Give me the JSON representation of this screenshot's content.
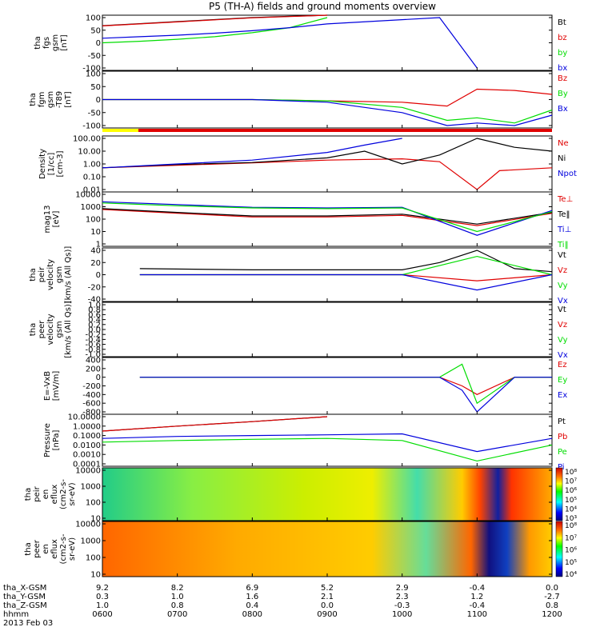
{
  "title": "P5 (TH-A) fields and ground moments overview",
  "date": "2013 Feb 03",
  "colors": {
    "black": "#000000",
    "red": "#e00000",
    "green": "#00dd00",
    "blue": "#0000dd",
    "yellow": "#ffff00",
    "orange": "#ff6600"
  },
  "x_ticks": [
    "0600",
    "0700",
    "0800",
    "0900",
    "1000",
    "1100",
    "1200"
  ],
  "ephemeris": [
    {
      "label": "tha_X-GSM",
      "values": [
        "9.2",
        "8.2",
        "6.9",
        "5.2",
        "2.9",
        "-0.4",
        "0.0"
      ]
    },
    {
      "label": "tha_Y-GSM",
      "values": [
        "0.3",
        "1.0",
        "1.6",
        "2.1",
        "2.3",
        "1.2",
        "-2.7"
      ]
    },
    {
      "label": "tha_Z-GSM",
      "values": [
        "1.0",
        "0.8",
        "0.4",
        "0.0",
        "-0.3",
        "-0.4",
        "0.8"
      ]
    },
    {
      "label": "hhmm",
      "values": [
        "",
        "",
        "",
        "",
        "",
        "",
        ""
      ]
    }
  ],
  "panels": [
    {
      "ylabel": [
        "tha",
        "fgs",
        "gsm",
        "[nT]"
      ],
      "ticks": [
        "100",
        "50",
        "0",
        "-50",
        "-100"
      ],
      "legend": [
        "Bt",
        "bz",
        "by",
        "bx"
      ],
      "legend_colors": [
        "black",
        "red",
        "green",
        "blue"
      ]
    },
    {
      "ylabel": [
        "tha",
        "fgm",
        "gsm",
        "-T89",
        "[nT]"
      ],
      "ticks": [
        "100",
        "50",
        "0",
        "-50",
        "-100"
      ],
      "legend": [
        "Bz",
        "By",
        "Bx"
      ],
      "legend_colors": [
        "red",
        "green",
        "blue"
      ]
    },
    {
      "ylabel": [
        "Density",
        "[1/cc]",
        "[cm-3]"
      ],
      "ticks": [
        "100.00",
        "10.00",
        "1.00",
        "0.10",
        "0.01"
      ],
      "legend": [
        "Ne",
        "Ni",
        "Npot"
      ],
      "legend_colors": [
        "red",
        "black",
        "blue"
      ]
    },
    {
      "ylabel": [
        "mag13",
        "[eV]"
      ],
      "ticks": [
        "10000",
        "1000",
        "100",
        "10",
        "1"
      ],
      "legend": [
        "Te⊥",
        "Te‖",
        "Ti⊥",
        "Ti‖"
      ],
      "legend_colors": [
        "red",
        "black",
        "blue",
        "green"
      ]
    },
    {
      "ylabel": [
        "tha",
        "peir",
        "velocity",
        "gsm",
        "[km/s (All Qs)]"
      ],
      "ticks": [
        "40",
        "20",
        "0",
        "-20",
        "-40"
      ],
      "legend": [
        "Vt",
        "Vz",
        "Vy",
        "Vx"
      ],
      "legend_colors": [
        "black",
        "red",
        "green",
        "blue"
      ]
    },
    {
      "ylabel": [
        "tha",
        "peer",
        "velocity",
        "gsm",
        "[km/s (All Qs)]"
      ],
      "ticks": [
        "1.0",
        "0.8",
        "0.6",
        "0.4",
        "0.2",
        "0.0",
        "-0.2",
        "-0.4",
        "-0.6",
        "-0.8",
        "-1.0"
      ],
      "legend": [
        "Vt",
        "Vz",
        "Vy",
        "Vx"
      ],
      "legend_colors": [
        "black",
        "red",
        "green",
        "blue"
      ]
    },
    {
      "ylabel": [
        "E=-VxB",
        "[mV/m]"
      ],
      "ticks": [
        "400",
        "200",
        "0",
        "-200",
        "-400",
        "-600",
        "-800"
      ],
      "legend": [
        "Ez",
        "Ey",
        "Ex"
      ],
      "legend_colors": [
        "red",
        "green",
        "blue"
      ]
    },
    {
      "ylabel": [
        "Pressure",
        "[nPa]"
      ],
      "ticks": [
        "10.0000",
        "1.0000",
        "0.1000",
        "0.0100",
        "0.0010",
        "0.0001"
      ],
      "legend": [
        "Pt",
        "Pb",
        "Pe",
        "Pi"
      ],
      "legend_colors": [
        "black",
        "red",
        "green",
        "blue"
      ]
    },
    {
      "ylabel": [
        "tha",
        "peir",
        "en",
        "eflux",
        "(cm2-s-",
        "sr-eV)"
      ],
      "ticks": [
        "10000",
        "1000",
        "100",
        "10"
      ],
      "colorbar": [
        "10⁸",
        "10⁷",
        "10⁶",
        "10⁵",
        "10⁴",
        "10³"
      ]
    },
    {
      "ylabel": [
        "tha",
        "peer",
        "en",
        "eflux",
        "(cm2-s-",
        "sr-eV)"
      ],
      "ticks": [
        "10000",
        "1000",
        "100",
        "10"
      ],
      "colorbar": [
        "10⁸",
        "10⁷",
        "10⁶",
        "10⁵",
        "10⁴"
      ]
    }
  ],
  "chart_data": {
    "type": "line",
    "title": "P5 (TH-A) fields and ground moments overview",
    "x_unit": "UT hhmm",
    "x_range": [
      "0600",
      "1200"
    ],
    "x_ticks": [
      "0600",
      "0700",
      "0800",
      "0900",
      "1000",
      "1100",
      "1200"
    ],
    "panels": [
      {
        "name": "fgs",
        "ylim": [
          -100,
          100
        ],
        "series": [
          {
            "name": "Bt",
            "color": "black",
            "x": [
              6.0,
              6.5,
              7.0,
              7.5,
              8.0,
              8.5,
              9.0
            ],
            "y": [
              68,
              76,
              84,
              92,
              100,
              105,
              110
            ]
          },
          {
            "name": "bz",
            "color": "red",
            "x": [
              6.0,
              6.5,
              7.0,
              7.5,
              8.0,
              8.5,
              9.0
            ],
            "y": [
              67,
              75,
              83,
              91,
              99,
              104,
              110
            ]
          },
          {
            "name": "by",
            "color": "green",
            "x": [
              6.0,
              6.5,
              7.0,
              7.5,
              8.0,
              8.5,
              9.0
            ],
            "y": [
              0,
              6,
              14,
              24,
              40,
              60,
              100
            ]
          },
          {
            "name": "bx",
            "color": "blue",
            "x": [
              6.0,
              6.5,
              7.0,
              7.5,
              8.0,
              8.5,
              9.0,
              10.5,
              11.0
            ],
            "y": [
              18,
              24,
              30,
              38,
              48,
              60,
              75,
              100,
              -100
            ]
          }
        ]
      },
      {
        "name": "fgm-T89",
        "ylim": [
          -100,
          100
        ],
        "series": [
          {
            "name": "Bz",
            "color": "red",
            "x": [
              6.0,
              7.0,
              8.0,
              9.0,
              10.0,
              10.6,
              11.0,
              11.5,
              12.0
            ],
            "y": [
              0,
              0,
              0,
              -5,
              -10,
              -25,
              40,
              35,
              20
            ]
          },
          {
            "name": "By",
            "color": "green",
            "x": [
              6.0,
              7.0,
              8.0,
              9.0,
              10.0,
              10.6,
              11.0,
              11.5,
              12.0
            ],
            "y": [
              0,
              0,
              0,
              -5,
              -30,
              -80,
              -70,
              -90,
              -40
            ]
          },
          {
            "name": "Bx",
            "color": "blue",
            "x": [
              6.0,
              7.0,
              8.0,
              9.0,
              10.0,
              10.6,
              11.0,
              11.5,
              12.0
            ],
            "y": [
              0,
              0,
              0,
              -10,
              -50,
              -100,
              -90,
              -100,
              -60
            ]
          }
        ]
      },
      {
        "name": "Density",
        "yscale": "log",
        "ylim": [
          0.01,
          100
        ],
        "series": [
          {
            "name": "Ne",
            "color": "red",
            "x": [
              6.0,
              7.0,
              8.0,
              9.0,
              10.0,
              10.5,
              11.0,
              11.3,
              12.0
            ],
            "y": [
              0.5,
              0.8,
              1.2,
              2,
              2.5,
              1.5,
              0.01,
              0.3,
              0.5
            ]
          },
          {
            "name": "Ni",
            "color": "black",
            "x": [
              6.0,
              7.0,
              8.0,
              9.0,
              9.5,
              10.0,
              10.5,
              11.0,
              11.5,
              12.0
            ],
            "y": [
              0.5,
              0.9,
              1.3,
              3,
              10,
              1,
              5,
              100,
              20,
              10
            ]
          },
          {
            "name": "Npot",
            "color": "blue",
            "x": [
              6.0,
              7.0,
              8.0,
              9.0,
              9.5,
              10.0
            ],
            "y": [
              0.5,
              1,
              2,
              8,
              30,
              100
            ]
          }
        ]
      },
      {
        "name": "Temperature",
        "yscale": "log",
        "ylim": [
          1,
          10000
        ],
        "series": [
          {
            "name": "Te⊥",
            "color": "red",
            "x": [
              6.0,
              7.0,
              8.0,
              9.0,
              10.0,
              11.0,
              12.0
            ],
            "y": [
              600,
              300,
              150,
              150,
              200,
              30,
              300
            ]
          },
          {
            "name": "Te‖",
            "color": "black",
            "x": [
              6.0,
              7.0,
              8.0,
              9.0,
              10.0,
              11.0,
              12.0
            ],
            "y": [
              700,
              350,
              180,
              180,
              250,
              40,
              350
            ]
          },
          {
            "name": "Ti⊥",
            "color": "blue",
            "x": [
              6.0,
              7.0,
              8.0,
              9.0,
              10.0,
              11.0,
              12.0
            ],
            "y": [
              2500,
              1500,
              900,
              800,
              900,
              5,
              500
            ]
          },
          {
            "name": "Ti‖",
            "color": "green",
            "x": [
              6.0,
              7.0,
              8.0,
              9.0,
              10.0,
              11.0,
              12.0
            ],
            "y": [
              2000,
              1200,
              800,
              700,
              800,
              10,
              400
            ]
          }
        ]
      },
      {
        "name": "peir velocity",
        "ylim": [
          -40,
          40
        ],
        "series": [
          {
            "name": "Vt",
            "color": "black",
            "x": [
              6.5,
              8.0,
              10.0,
              10.5,
              11.0,
              11.5,
              12.0
            ],
            "y": [
              10,
              8,
              8,
              20,
              40,
              10,
              5
            ]
          },
          {
            "name": "Vz",
            "color": "red",
            "x": [
              6.5,
              8.0,
              10.0,
              11.0,
              12.0
            ],
            "y": [
              0,
              0,
              0,
              -10,
              0
            ]
          },
          {
            "name": "Vy",
            "color": "green",
            "x": [
              6.5,
              8.0,
              10.0,
              11.0,
              12.0
            ],
            "y": [
              0,
              0,
              0,
              30,
              0
            ]
          },
          {
            "name": "Vx",
            "color": "blue",
            "x": [
              6.5,
              8.0,
              10.0,
              11.0,
              12.0
            ],
            "y": [
              0,
              0,
              0,
              -25,
              0
            ]
          }
        ]
      },
      {
        "name": "peer velocity",
        "ylim": [
          -1,
          1
        ],
        "series": []
      },
      {
        "name": "E=-VxB",
        "ylim": [
          -800,
          400
        ],
        "series": [
          {
            "name": "Ez",
            "color": "red",
            "x": [
              6.5,
              10.5,
              10.8,
              11.0,
              11.5,
              12.0
            ],
            "y": [
              0,
              0,
              -200,
              -400,
              0,
              0
            ]
          },
          {
            "name": "Ey",
            "color": "green",
            "x": [
              6.5,
              10.5,
              10.8,
              11.0,
              11.5,
              12.0
            ],
            "y": [
              0,
              0,
              300,
              -600,
              0,
              0
            ]
          },
          {
            "name": "Ex",
            "color": "blue",
            "x": [
              6.5,
              10.5,
              10.8,
              11.0,
              11.5,
              12.0
            ],
            "y": [
              0,
              0,
              -300,
              -800,
              0,
              0
            ]
          }
        ]
      },
      {
        "name": "Pressure",
        "yscale": "log",
        "ylim": [
          0.0001,
          10
        ],
        "series": [
          {
            "name": "Pt",
            "color": "black",
            "x": [
              6.0,
              7.0,
              8.0,
              9.0
            ],
            "y": [
              0.3,
              1,
              3,
              10
            ]
          },
          {
            "name": "Pb",
            "color": "red",
            "x": [
              6.0,
              7.0,
              8.0,
              9.0
            ],
            "y": [
              0.3,
              1,
              3,
              10
            ]
          },
          {
            "name": "Pe",
            "color": "green",
            "x": [
              6.0,
              7.0,
              8.0,
              9.0,
              10.0,
              11.0,
              12.0
            ],
            "y": [
              0.02,
              0.03,
              0.04,
              0.05,
              0.03,
              0.0002,
              0.01
            ]
          },
          {
            "name": "Pi",
            "color": "blue",
            "x": [
              6.0,
              7.0,
              8.0,
              9.0,
              10.0,
              11.0,
              12.0
            ],
            "y": [
              0.05,
              0.08,
              0.1,
              0.12,
              0.15,
              0.002,
              0.05
            ]
          }
        ]
      },
      {
        "name": "peir en eflux",
        "type": "heatmap",
        "yscale": "log",
        "ylim": [
          10,
          10000
        ],
        "color_range": [
          "10³",
          "10⁸"
        ]
      },
      {
        "name": "peer en eflux",
        "type": "heatmap",
        "yscale": "log",
        "ylim": [
          10,
          10000
        ],
        "color_range": [
          "10⁴",
          "10⁸"
        ]
      }
    ]
  }
}
